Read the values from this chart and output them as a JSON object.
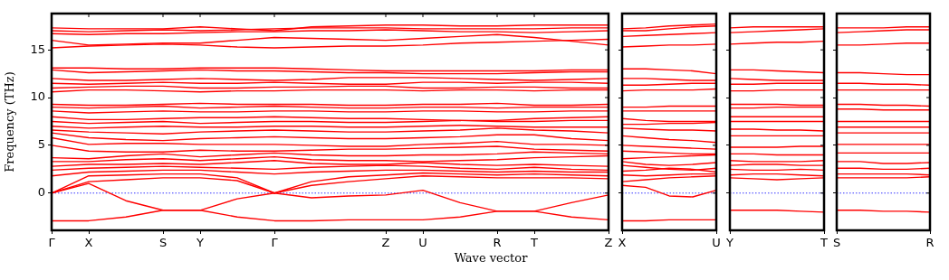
{
  "chart_data": [
    {
      "type": "line",
      "ylabel": "Frequency (THz)",
      "xlabel": "Wave vector",
      "ylim": [
        -3.9,
        18.8
      ],
      "yticks": [
        0,
        5,
        10,
        15
      ],
      "categories": [
        "Γ",
        "X",
        null,
        "S",
        "Y",
        null,
        "Γ",
        null,
        null,
        "Z",
        "U",
        null,
        "R",
        "T",
        null,
        "Z"
      ],
      "ref_lines": [
        {
          "axis": "y",
          "value": 0,
          "color": "#0000ff",
          "line_style": "dotted"
        }
      ],
      "series": [
        {
          "color": "#ff0000",
          "values": [
            -2.9,
            -2.9,
            -2.5,
            -1.8,
            -1.8,
            -2.5,
            -2.9,
            -2.9,
            -2.8,
            -2.8,
            -2.8,
            -2.5,
            -1.9,
            -1.9,
            -2.5,
            -2.8
          ]
        },
        {
          "color": "#ff0000",
          "values": [
            0,
            1.0,
            -0.8,
            -1.8,
            -1.8,
            -0.6,
            0,
            -0.5,
            -0.3,
            -0.2,
            0.3,
            -1.0,
            -1.9,
            -1.9,
            -1.0,
            -0.2
          ]
        },
        {
          "color": "#ff0000",
          "values": [
            0,
            1.2,
            1.4,
            1.6,
            1.6,
            1.3,
            0,
            0.8,
            1.2,
            1.5,
            1.8,
            1.7,
            1.6,
            1.6,
            1.6,
            1.5
          ]
        },
        {
          "color": "#ff0000",
          "values": [
            0,
            1.8,
            1.9,
            2.0,
            2.0,
            1.6,
            0,
            1.2,
            1.7,
            1.9,
            2.1,
            2.0,
            1.9,
            2.0,
            1.9,
            1.8
          ]
        },
        {
          "color": "#ff0000",
          "values": [
            1.8,
            2.2,
            2.3,
            2.4,
            2.4,
            2.2,
            2.0,
            2.2,
            2.3,
            2.4,
            2.4,
            2.3,
            2.2,
            2.3,
            2.2,
            2.2
          ]
        },
        {
          "color": "#ff0000",
          "values": [
            2.4,
            2.6,
            2.7,
            2.8,
            2.7,
            2.6,
            2.5,
            2.7,
            2.8,
            2.9,
            2.8,
            2.6,
            2.5,
            2.7,
            2.5,
            2.4
          ]
        },
        {
          "color": "#ff0000",
          "values": [
            2.8,
            3.0,
            3.0,
            3.1,
            3.0,
            3.2,
            3.4,
            3.1,
            3.0,
            3.0,
            3.2,
            3.0,
            2.9,
            3.0,
            2.9,
            2.8
          ]
        },
        {
          "color": "#ff0000",
          "values": [
            3.3,
            3.3,
            3.5,
            3.6,
            3.4,
            3.6,
            3.8,
            3.5,
            3.4,
            3.4,
            3.3,
            3.4,
            3.5,
            3.7,
            3.8,
            3.9
          ]
        },
        {
          "color": "#ff0000",
          "values": [
            3.7,
            3.6,
            3.9,
            4.1,
            3.8,
            4.0,
            4.2,
            4.0,
            3.9,
            3.9,
            4.0,
            4.0,
            4.1,
            4.3,
            4.2,
            4.1
          ]
        },
        {
          "color": "#ff0000",
          "values": [
            5.0,
            4.4,
            4.3,
            4.3,
            4.5,
            4.4,
            4.4,
            4.5,
            4.6,
            4.6,
            4.7,
            4.8,
            4.9,
            4.6,
            4.5,
            4.4
          ]
        },
        {
          "color": "#ff0000",
          "values": [
            5.8,
            5.1,
            5.2,
            5.2,
            5.1,
            5.1,
            5.1,
            5.0,
            4.9,
            4.9,
            5.1,
            5.2,
            5.4,
            5.1,
            5.1,
            5.0
          ]
        },
        {
          "color": "#ff0000",
          "values": [
            6.3,
            5.8,
            5.6,
            5.5,
            5.7,
            5.8,
            5.9,
            5.8,
            5.7,
            5.7,
            5.8,
            5.9,
            6.1,
            6.1,
            5.7,
            5.5
          ]
        },
        {
          "color": "#ff0000",
          "values": [
            6.6,
            6.4,
            6.3,
            6.2,
            6.4,
            6.5,
            6.6,
            6.5,
            6.4,
            6.4,
            6.5,
            6.6,
            6.8,
            6.6,
            6.5,
            6.3
          ]
        },
        {
          "color": "#ff0000",
          "values": [
            7.0,
            6.8,
            6.9,
            7.0,
            6.9,
            6.9,
            7.0,
            7.0,
            6.9,
            6.9,
            7.0,
            7.1,
            7.0,
            6.9,
            6.9,
            6.9
          ]
        },
        {
          "color": "#ff0000",
          "values": [
            7.5,
            7.3,
            7.4,
            7.5,
            7.3,
            7.4,
            7.5,
            7.5,
            7.4,
            7.4,
            7.5,
            7.6,
            7.5,
            7.5,
            7.6,
            7.6
          ]
        },
        {
          "color": "#ff0000",
          "values": [
            8.0,
            7.7,
            7.7,
            7.8,
            7.9,
            7.9,
            8.0,
            7.9,
            7.8,
            7.8,
            7.7,
            7.6,
            7.6,
            7.8,
            7.9,
            8.0
          ]
        },
        {
          "color": "#ff0000",
          "values": [
            8.6,
            8.4,
            8.5,
            8.6,
            8.5,
            8.5,
            8.6,
            8.6,
            8.5,
            8.5,
            8.6,
            8.6,
            8.5,
            8.5,
            8.6,
            8.6
          ]
        },
        {
          "color": "#ff0000",
          "values": [
            9.0,
            8.9,
            9.0,
            9.1,
            8.9,
            9.0,
            9.1,
            9.0,
            8.9,
            8.9,
            9.0,
            9.0,
            8.9,
            9.0,
            9.0,
            9.0
          ]
        },
        {
          "color": "#ff0000",
          "values": [
            9.3,
            9.2,
            9.2,
            9.3,
            9.4,
            9.3,
            9.3,
            9.3,
            9.2,
            9.2,
            9.3,
            9.3,
            9.4,
            9.2,
            9.2,
            9.3
          ]
        },
        {
          "color": "#ff0000",
          "values": [
            10.6,
            10.8,
            10.8,
            10.7,
            10.6,
            10.7,
            10.7,
            10.8,
            10.8,
            10.8,
            10.7,
            10.8,
            10.8,
            10.7,
            10.8,
            10.8
          ]
        },
        {
          "color": "#ff0000",
          "values": [
            11.0,
            11.1,
            11.2,
            11.2,
            11.0,
            11.0,
            11.1,
            11.1,
            11.2,
            11.2,
            11.0,
            11.0,
            11.1,
            11.1,
            11.0,
            11.0
          ]
        },
        {
          "color": "#ff0000",
          "values": [
            11.5,
            11.4,
            11.5,
            11.6,
            11.5,
            11.5,
            11.6,
            11.5,
            11.4,
            11.4,
            11.6,
            11.6,
            11.5,
            11.6,
            11.6,
            11.5
          ]
        },
        {
          "color": "#ff0000",
          "values": [
            12.0,
            11.8,
            11.8,
            11.9,
            12.0,
            11.9,
            11.8,
            11.9,
            12.1,
            12.1,
            12.1,
            12.0,
            11.9,
            11.8,
            11.9,
            12.0
          ]
        },
        {
          "color": "#ff0000",
          "values": [
            12.9,
            12.6,
            12.7,
            12.8,
            12.9,
            12.8,
            12.8,
            12.7,
            12.6,
            12.6,
            12.5,
            12.5,
            12.5,
            12.6,
            12.7,
            12.7
          ]
        },
        {
          "color": "#ff0000",
          "values": [
            13.1,
            13.1,
            13.0,
            13.0,
            13.1,
            13.1,
            13.1,
            13.0,
            12.9,
            12.8,
            12.8,
            12.8,
            12.8,
            12.8,
            12.9,
            12.9
          ]
        },
        {
          "color": "#ff0000",
          "values": [
            15.2,
            15.4,
            15.5,
            15.6,
            15.5,
            15.3,
            15.2,
            15.3,
            15.4,
            15.4,
            15.5,
            15.7,
            15.8,
            15.9,
            16.0,
            16.1
          ]
        },
        {
          "color": "#ff0000",
          "values": [
            16.0,
            15.5,
            15.6,
            15.7,
            15.7,
            16.0,
            16.3,
            16.2,
            16.1,
            16.0,
            16.2,
            16.4,
            16.6,
            16.3,
            15.9,
            15.5
          ]
        },
        {
          "color": "#ff0000",
          "values": [
            16.7,
            16.6,
            16.7,
            16.7,
            16.8,
            16.9,
            16.9,
            17.0,
            17.0,
            17.1,
            17.0,
            16.9,
            16.9,
            16.8,
            16.9,
            17.0
          ]
        },
        {
          "color": "#ff0000",
          "values": [
            17.0,
            16.9,
            17.0,
            17.1,
            17.0,
            17.1,
            17.2,
            17.3,
            17.3,
            17.3,
            17.2,
            17.2,
            17.2,
            17.2,
            17.3,
            17.3
          ]
        },
        {
          "color": "#ff0000",
          "values": [
            17.3,
            17.2,
            17.2,
            17.2,
            17.4,
            17.2,
            17.0,
            17.4,
            17.5,
            17.6,
            17.6,
            17.5,
            17.5,
            17.6,
            17.6,
            17.6
          ]
        }
      ]
    },
    {
      "type": "line",
      "tick_labels": "x",
      "ylim": [
        -3.9,
        18.8
      ],
      "yticks": [
        0,
        5,
        10,
        15
      ],
      "categories": [
        "X",
        null,
        null,
        null,
        "U"
      ],
      "ref_lines": [
        {
          "axis": "y",
          "value": 0,
          "color": "#0000ff",
          "line_style": "dotted"
        }
      ],
      "series": [
        {
          "color": "#ff0000",
          "values": [
            -2.9,
            -2.9,
            -2.8,
            -2.8,
            -2.8
          ]
        },
        {
          "color": "#ff0000",
          "values": [
            0.8,
            0.6,
            -0.3,
            -0.4,
            0.3
          ]
        },
        {
          "color": "#ff0000",
          "values": [
            1.2,
            1.4,
            1.6,
            1.7,
            1.8
          ]
        },
        {
          "color": "#ff0000",
          "values": [
            1.9,
            1.8,
            1.9,
            2.0,
            2.0
          ]
        },
        {
          "color": "#ff0000",
          "values": [
            2.3,
            2.4,
            2.6,
            2.5,
            2.2
          ]
        },
        {
          "color": "#ff0000",
          "values": [
            2.9,
            2.7,
            2.5,
            2.4,
            2.6
          ]
        },
        {
          "color": "#ff0000",
          "values": [
            3.3,
            3.0,
            2.9,
            3.0,
            3.2
          ]
        },
        {
          "color": "#ff0000",
          "values": [
            3.6,
            3.7,
            3.8,
            3.9,
            4.0
          ]
        },
        {
          "color": "#ff0000",
          "values": [
            4.4,
            4.3,
            4.2,
            4.1,
            4.1
          ]
        },
        {
          "color": "#ff0000",
          "values": [
            5.0,
            4.9,
            4.8,
            4.7,
            4.6
          ]
        },
        {
          "color": "#ff0000",
          "values": [
            6.0,
            5.8,
            5.6,
            5.5,
            5.3
          ]
        },
        {
          "color": "#ff0000",
          "values": [
            6.8,
            6.7,
            6.6,
            6.6,
            6.5
          ]
        },
        {
          "color": "#ff0000",
          "values": [
            7.2,
            7.2,
            7.3,
            7.3,
            7.4
          ]
        },
        {
          "color": "#ff0000",
          "values": [
            7.8,
            7.6,
            7.5,
            7.5,
            7.5
          ]
        },
        {
          "color": "#ff0000",
          "values": [
            8.6,
            8.6,
            8.6,
            8.6,
            8.6
          ]
        },
        {
          "color": "#ff0000",
          "values": [
            9.0,
            9.0,
            9.1,
            9.1,
            9.1
          ]
        },
        {
          "color": "#ff0000",
          "values": [
            10.7,
            10.8,
            10.8,
            10.8,
            10.9
          ]
        },
        {
          "color": "#ff0000",
          "values": [
            11.3,
            11.3,
            11.4,
            11.5,
            11.5
          ]
        },
        {
          "color": "#ff0000",
          "values": [
            12.0,
            12.0,
            11.9,
            11.8,
            11.8
          ]
        },
        {
          "color": "#ff0000",
          "values": [
            13.0,
            13.0,
            12.9,
            12.8,
            12.5
          ]
        },
        {
          "color": "#ff0000",
          "values": [
            15.3,
            15.4,
            15.5,
            15.5,
            15.6
          ]
        },
        {
          "color": "#ff0000",
          "values": [
            16.4,
            16.5,
            16.6,
            16.7,
            16.8
          ]
        },
        {
          "color": "#ff0000",
          "values": [
            17.0,
            17.0,
            17.2,
            17.4,
            17.5
          ]
        },
        {
          "color": "#ff0000",
          "values": [
            17.2,
            17.3,
            17.5,
            17.6,
            17.7
          ]
        }
      ]
    },
    {
      "type": "line",
      "tick_labels": "x",
      "ylim": [
        -3.9,
        18.8
      ],
      "yticks": [
        0,
        5,
        10,
        15
      ],
      "categories": [
        "Y",
        null,
        null,
        null,
        "T"
      ],
      "ref_lines": [
        {
          "axis": "y",
          "value": 0,
          "color": "#0000ff",
          "line_style": "dotted"
        }
      ],
      "series": [
        {
          "color": "#ff0000",
          "values": [
            -1.8,
            -1.8,
            -1.8,
            -1.9,
            -2.0
          ]
        },
        {
          "color": "#ff0000",
          "values": [
            1.6,
            1.5,
            1.4,
            1.5,
            1.6
          ]
        },
        {
          "color": "#ff0000",
          "values": [
            1.9,
            2.0,
            2.0,
            1.9,
            1.8
          ]
        },
        {
          "color": "#ff0000",
          "values": [
            2.5,
            2.4,
            2.4,
            2.5,
            2.4
          ]
        },
        {
          "color": "#ff0000",
          "values": [
            2.9,
            3.0,
            3.0,
            2.9,
            2.9
          ]
        },
        {
          "color": "#ff0000",
          "values": [
            3.4,
            3.3,
            3.3,
            3.3,
            3.4
          ]
        },
        {
          "color": "#ff0000",
          "values": [
            4.1,
            4.1,
            4.0,
            4.0,
            4.0
          ]
        },
        {
          "color": "#ff0000",
          "values": [
            4.8,
            4.8,
            4.8,
            4.9,
            4.9
          ]
        },
        {
          "color": "#ff0000",
          "values": [
            6.0,
            6.0,
            6.0,
            6.0,
            6.0
          ]
        },
        {
          "color": "#ff0000",
          "values": [
            6.7,
            6.7,
            6.6,
            6.6,
            6.5
          ]
        },
        {
          "color": "#ff0000",
          "values": [
            7.5,
            7.5,
            7.5,
            7.5,
            7.5
          ]
        },
        {
          "color": "#ff0000",
          "values": [
            8.0,
            8.0,
            8.0,
            8.0,
            8.0
          ]
        },
        {
          "color": "#ff0000",
          "values": [
            8.9,
            8.9,
            9.0,
            9.0,
            9.0
          ]
        },
        {
          "color": "#ff0000",
          "values": [
            9.3,
            9.3,
            9.3,
            9.2,
            9.2
          ]
        },
        {
          "color": "#ff0000",
          "values": [
            10.7,
            10.7,
            10.8,
            10.8,
            10.8
          ]
        },
        {
          "color": "#ff0000",
          "values": [
            11.4,
            11.4,
            11.5,
            11.5,
            11.5
          ]
        },
        {
          "color": "#ff0000",
          "values": [
            12.0,
            11.9,
            11.8,
            11.8,
            11.8
          ]
        },
        {
          "color": "#ff0000",
          "values": [
            12.9,
            12.9,
            12.8,
            12.7,
            12.6
          ]
        },
        {
          "color": "#ff0000",
          "values": [
            15.6,
            15.7,
            15.8,
            15.8,
            15.9
          ]
        },
        {
          "color": "#ff0000",
          "values": [
            16.8,
            16.9,
            17.0,
            17.1,
            17.2
          ]
        },
        {
          "color": "#ff0000",
          "values": [
            17.3,
            17.4,
            17.4,
            17.4,
            17.4
          ]
        }
      ]
    },
    {
      "type": "line",
      "tick_labels": "x",
      "ylim": [
        -3.9,
        18.8
      ],
      "yticks": [
        0,
        5,
        10,
        15
      ],
      "categories": [
        "S",
        null,
        null,
        null,
        "R"
      ],
      "ref_lines": [
        {
          "axis": "y",
          "value": 0,
          "color": "#0000ff",
          "line_style": "dotted"
        }
      ],
      "series": [
        {
          "color": "#ff0000",
          "values": [
            -1.8,
            -1.8,
            -1.9,
            -1.9,
            -2.0
          ]
        },
        {
          "color": "#ff0000",
          "values": [
            1.6,
            1.6,
            1.6,
            1.6,
            1.7
          ]
        },
        {
          "color": "#ff0000",
          "values": [
            2.0,
            2.0,
            2.0,
            2.0,
            1.9
          ]
        },
        {
          "color": "#ff0000",
          "values": [
            2.6,
            2.6,
            2.5,
            2.5,
            2.6
          ]
        },
        {
          "color": "#ff0000",
          "values": [
            3.3,
            3.3,
            3.1,
            3.1,
            3.2
          ]
        },
        {
          "color": "#ff0000",
          "values": [
            4.2,
            4.2,
            4.2,
            4.2,
            4.2
          ]
        },
        {
          "color": "#ff0000",
          "values": [
            5.1,
            5.1,
            5.1,
            5.1,
            5.1
          ]
        },
        {
          "color": "#ff0000",
          "values": [
            6.3,
            6.3,
            6.3,
            6.3,
            6.3
          ]
        },
        {
          "color": "#ff0000",
          "values": [
            6.9,
            6.9,
            6.9,
            6.9,
            6.9
          ]
        },
        {
          "color": "#ff0000",
          "values": [
            7.5,
            7.5,
            7.5,
            7.5,
            7.5
          ]
        },
        {
          "color": "#ff0000",
          "values": [
            8.8,
            8.8,
            8.7,
            8.7,
            8.7
          ]
        },
        {
          "color": "#ff0000",
          "values": [
            9.3,
            9.3,
            9.2,
            9.2,
            9.1
          ]
        },
        {
          "color": "#ff0000",
          "values": [
            10.8,
            10.8,
            10.8,
            10.8,
            10.8
          ]
        },
        {
          "color": "#ff0000",
          "values": [
            11.5,
            11.5,
            11.4,
            11.4,
            11.3
          ]
        },
        {
          "color": "#ff0000",
          "values": [
            12.6,
            12.6,
            12.5,
            12.4,
            12.4
          ]
        },
        {
          "color": "#ff0000",
          "values": [
            15.5,
            15.5,
            15.6,
            15.7,
            15.7
          ]
        },
        {
          "color": "#ff0000",
          "values": [
            16.8,
            16.9,
            17.0,
            17.1,
            17.1
          ]
        },
        {
          "color": "#ff0000",
          "values": [
            17.3,
            17.3,
            17.3,
            17.4,
            17.4
          ]
        }
      ]
    }
  ]
}
